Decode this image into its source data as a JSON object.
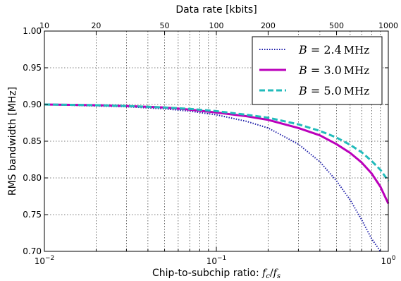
{
  "chart_data": {
    "type": "line",
    "xlabel_prefix": "Chip-to-subchip ratio: ",
    "xlabel_math": "fc/fs",
    "ylabel": "RMS bandwidth [MHz]",
    "top_xlabel": "Data rate [kbits]",
    "x_scale": "log",
    "xlim": [
      0.01,
      1
    ],
    "ylim": [
      0.7,
      1.0
    ],
    "grid": true,
    "legend_position": "top-right",
    "y_ticks": [
      "0.70",
      "0.75",
      "0.80",
      "0.85",
      "0.90",
      "0.95",
      "1.00"
    ],
    "x_major_ticks": [
      {
        "value": 0.01,
        "base": "10",
        "exp": "−2"
      },
      {
        "value": 0.1,
        "base": "10",
        "exp": "−1"
      },
      {
        "value": 1,
        "base": "10",
        "exp": "0"
      }
    ],
    "top_ticks": [
      "10",
      "20",
      "50",
      "100",
      "200",
      "500",
      "1000"
    ],
    "series": [
      {
        "name": "B = 2.4 MHz",
        "color": "#2222aa",
        "style": "dotted",
        "x": [
          0.01,
          0.02,
          0.03,
          0.05,
          0.07,
          0.1,
          0.15,
          0.2,
          0.3,
          0.4,
          0.5,
          0.6,
          0.7,
          0.8,
          0.9
        ],
        "y": [
          0.9,
          0.898,
          0.897,
          0.894,
          0.891,
          0.886,
          0.877,
          0.868,
          0.846,
          0.822,
          0.796,
          0.77,
          0.743,
          0.717,
          0.7
        ]
      },
      {
        "name": "B = 3.0 MHz",
        "color": "#bb00bb",
        "style": "solid",
        "x": [
          0.01,
          0.02,
          0.03,
          0.05,
          0.07,
          0.1,
          0.15,
          0.2,
          0.3,
          0.4,
          0.5,
          0.6,
          0.7,
          0.8,
          0.9,
          1.0
        ],
        "y": [
          0.9,
          0.899,
          0.898,
          0.896,
          0.893,
          0.889,
          0.884,
          0.879,
          0.868,
          0.858,
          0.846,
          0.834,
          0.821,
          0.806,
          0.788,
          0.765
        ]
      },
      {
        "name": "B = 5.0 MHz",
        "color": "#22bbbb",
        "style": "dashed",
        "x": [
          0.01,
          0.02,
          0.03,
          0.05,
          0.07,
          0.1,
          0.15,
          0.2,
          0.3,
          0.4,
          0.5,
          0.6,
          0.7,
          0.8,
          0.9,
          1.0
        ],
        "y": [
          0.9,
          0.899,
          0.898,
          0.896,
          0.894,
          0.891,
          0.886,
          0.882,
          0.873,
          0.864,
          0.855,
          0.845,
          0.835,
          0.823,
          0.811,
          0.796
        ]
      }
    ],
    "legend": [
      {
        "var": "B",
        "eq": " = ",
        "val": "2.4",
        "unit": "MHz"
      },
      {
        "var": "B",
        "eq": " = ",
        "val": "3.0",
        "unit": "MHz"
      },
      {
        "var": "B",
        "eq": " = ",
        "val": "5.0",
        "unit": "MHz"
      }
    ]
  }
}
